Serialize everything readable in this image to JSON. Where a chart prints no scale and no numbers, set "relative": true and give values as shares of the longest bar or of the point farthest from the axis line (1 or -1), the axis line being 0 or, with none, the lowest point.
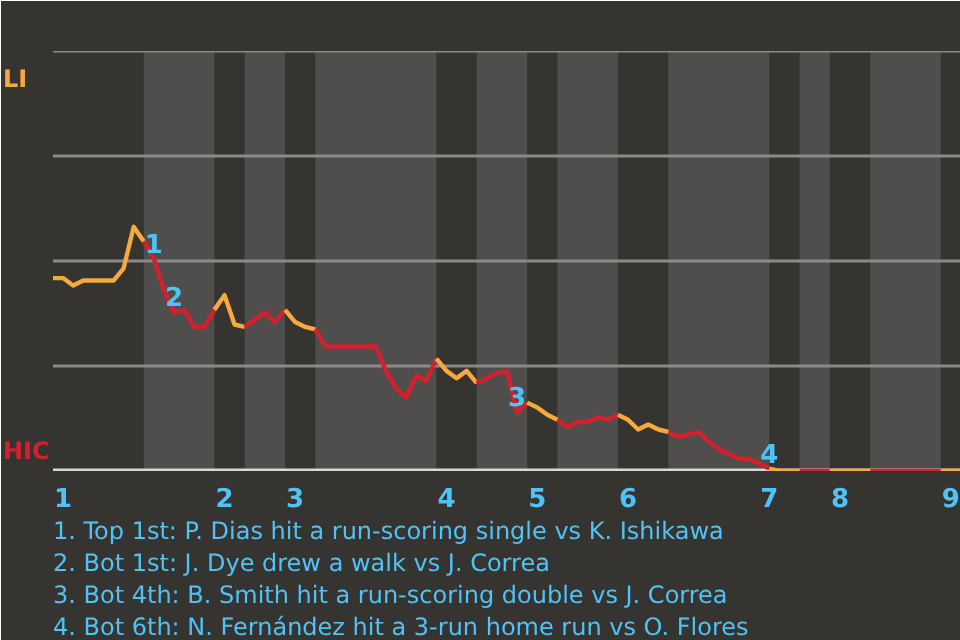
{
  "chart_data": {
    "type": "line",
    "relative": true,
    "categories": [
      null,
      "1",
      null,
      null,
      null,
      null,
      null,
      null,
      null,
      null,
      null,
      null,
      null,
      null,
      null,
      null,
      null,
      "2",
      null,
      null,
      null,
      null,
      null,
      null,
      "3",
      null,
      null,
      null,
      null,
      null,
      null,
      null,
      null,
      null,
      null,
      null,
      null,
      null,
      null,
      "4",
      null,
      null,
      null,
      null,
      null,
      null,
      null,
      null,
      "5",
      null,
      null,
      null,
      null,
      null,
      null,
      null,
      null,
      "6",
      null,
      null,
      null,
      null,
      null,
      null,
      null,
      null,
      null,
      null,
      null,
      null,
      null,
      "7",
      null,
      null,
      null,
      null,
      null,
      null,
      "8",
      null,
      null,
      null,
      null,
      null,
      null,
      null,
      null,
      null,
      null,
      "9",
      null
    ],
    "series": [
      {
        "name": "LI",
        "color": "#f7a93b",
        "values": [
          0.79,
          0.79,
          0.76,
          0.78,
          0.78,
          0.78,
          0.78,
          0.83,
          1,
          0.94,
          null,
          null,
          null,
          null,
          null,
          null,
          null,
          null,
          null,
          null,
          null,
          null,
          null,
          null,
          null,
          null,
          null,
          null,
          null,
          null,
          null,
          null,
          null,
          null,
          null,
          null,
          null,
          null,
          null,
          null,
          null,
          null,
          null,
          null,
          null,
          null,
          null,
          null,
          null,
          null,
          null,
          null,
          null,
          null,
          null,
          null,
          null,
          null,
          null,
          null,
          null,
          null,
          null,
          null,
          null,
          null,
          null,
          null,
          null,
          null,
          null,
          null,
          null,
          null,
          null,
          null,
          null,
          null,
          null,
          null,
          null,
          null,
          null,
          null,
          null,
          null,
          null,
          null,
          null,
          null,
          null
        ]
      },
      {
        "name": "HIC",
        "color": "#d4202c",
        "values": [
          null,
          null,
          null,
          null,
          null,
          null,
          null,
          null,
          null,
          0.94,
          0.87,
          0.74,
          0.65,
          0.66,
          0.59,
          0.59,
          0.66,
          null,
          null,
          null,
          null,
          null,
          null,
          null,
          null,
          null,
          null,
          null,
          null,
          null,
          null,
          null,
          null,
          null,
          null,
          null,
          null,
          null,
          null,
          null,
          null,
          null,
          null,
          null,
          null,
          null,
          null,
          null,
          null,
          null,
          null,
          null,
          null,
          null,
          null,
          null,
          null,
          null,
          null,
          null,
          null,
          null,
          null,
          null,
          null,
          null,
          null,
          null,
          null,
          null,
          null,
          null,
          null,
          null,
          null,
          null,
          null,
          null,
          null,
          null,
          null,
          null,
          null,
          null,
          null,
          null,
          null,
          null,
          null,
          null,
          null
        ]
      },
      {
        "color": "#f7a93b",
        "values": [
          null,
          null,
          null,
          null,
          null,
          null,
          null,
          null,
          null,
          null,
          null,
          null,
          null,
          null,
          null,
          null,
          0.66,
          0.72,
          0.6,
          0.59,
          null,
          null,
          null,
          null,
          null,
          null,
          null,
          null,
          null,
          null,
          null,
          null,
          null,
          null,
          null,
          null,
          null,
          null,
          null,
          null,
          null,
          null,
          null,
          null,
          null,
          null,
          null,
          null,
          null,
          null,
          null,
          null,
          null,
          null,
          null,
          null,
          null,
          null,
          null,
          null,
          null,
          null,
          null,
          null,
          null,
          null,
          null,
          null,
          null,
          null,
          null,
          null,
          null,
          null,
          null,
          null,
          null,
          null,
          null,
          null,
          null,
          null,
          null,
          null,
          null,
          null,
          null,
          null,
          null,
          null,
          null
        ]
      },
      {
        "color": "#d4202c",
        "values": [
          null,
          null,
          null,
          null,
          null,
          null,
          null,
          null,
          null,
          null,
          null,
          null,
          null,
          null,
          null,
          null,
          null,
          null,
          null,
          0.59,
          0.62,
          0.65,
          0.61,
          0.66,
          null,
          null,
          null,
          null,
          null,
          null,
          null,
          null,
          null,
          null,
          null,
          null,
          null,
          null,
          null,
          null,
          null,
          null,
          null,
          null,
          null,
          null,
          null,
          null,
          null,
          null,
          null,
          null,
          null,
          null,
          null,
          null,
          null,
          null,
          null,
          null,
          null,
          null,
          null,
          null,
          null,
          null,
          null,
          null,
          null,
          null,
          null,
          null,
          null,
          null,
          null,
          null,
          null,
          null,
          null,
          null,
          null,
          null,
          null,
          null,
          null,
          null,
          null,
          null,
          null,
          null,
          null
        ]
      },
      {
        "color": "#f7a93b",
        "values": [
          null,
          null,
          null,
          null,
          null,
          null,
          null,
          null,
          null,
          null,
          null,
          null,
          null,
          null,
          null,
          null,
          null,
          null,
          null,
          null,
          null,
          null,
          null,
          0.66,
          0.61,
          0.59,
          0.58,
          null,
          null,
          null,
          null,
          null,
          null,
          null,
          null,
          null,
          null,
          null,
          null,
          null,
          null,
          null,
          null,
          null,
          null,
          null,
          null,
          null,
          null,
          null,
          null,
          null,
          null,
          null,
          null,
          null,
          null,
          null,
          null,
          null,
          null,
          null,
          null,
          null,
          null,
          null,
          null,
          null,
          null,
          null,
          null,
          null,
          null,
          null,
          null,
          null,
          null,
          null,
          null,
          null,
          null,
          null,
          null,
          null,
          null,
          null,
          null,
          null,
          null,
          null,
          null
        ]
      },
      {
        "color": "#d4202c",
        "values": [
          null,
          null,
          null,
          null,
          null,
          null,
          null,
          null,
          null,
          null,
          null,
          null,
          null,
          null,
          null,
          null,
          null,
          null,
          null,
          null,
          null,
          null,
          null,
          null,
          null,
          null,
          0.58,
          0.51,
          0.51,
          0.51,
          0.51,
          0.51,
          0.51,
          0.41,
          0.34,
          0.3,
          0.39,
          0.37,
          0.46,
          null,
          null,
          null,
          null,
          null,
          null,
          null,
          null,
          null,
          null,
          null,
          null,
          null,
          null,
          null,
          null,
          null,
          null,
          null,
          null,
          null,
          null,
          null,
          null,
          null,
          null,
          null,
          null,
          null,
          null,
          null,
          null,
          null,
          null,
          null,
          null,
          null,
          null,
          null,
          null,
          null,
          null,
          null,
          null,
          null,
          null,
          null,
          null,
          null,
          null,
          null,
          null
        ]
      },
      {
        "color": "#f7a93b",
        "values": [
          null,
          null,
          null,
          null,
          null,
          null,
          null,
          null,
          null,
          null,
          null,
          null,
          null,
          null,
          null,
          null,
          null,
          null,
          null,
          null,
          null,
          null,
          null,
          null,
          null,
          null,
          null,
          null,
          null,
          null,
          null,
          null,
          null,
          null,
          null,
          null,
          null,
          null,
          0.46,
          0.41,
          0.38,
          0.41,
          0.36,
          null,
          null,
          null,
          null,
          null,
          null,
          null,
          null,
          null,
          null,
          null,
          null,
          null,
          null,
          null,
          null,
          null,
          null,
          null,
          null,
          null,
          null,
          null,
          null,
          null,
          null,
          null,
          null,
          null,
          null,
          null,
          null,
          null,
          null,
          null,
          null,
          null,
          null,
          null,
          null,
          null,
          null,
          null,
          null,
          null,
          null,
          null,
          null
        ]
      },
      {
        "color": "#d4202c",
        "values": [
          null,
          null,
          null,
          null,
          null,
          null,
          null,
          null,
          null,
          null,
          null,
          null,
          null,
          null,
          null,
          null,
          null,
          null,
          null,
          null,
          null,
          null,
          null,
          null,
          null,
          null,
          null,
          null,
          null,
          null,
          null,
          null,
          null,
          null,
          null,
          null,
          null,
          null,
          null,
          null,
          null,
          null,
          0.36,
          0.38,
          0.4,
          0.41,
          0.24,
          0.28,
          null,
          null,
          null,
          null,
          null,
          null,
          null,
          null,
          null,
          null,
          null,
          null,
          null,
          null,
          null,
          null,
          null,
          null,
          null,
          null,
          null,
          null,
          null,
          null,
          null,
          null,
          null,
          null,
          null,
          null,
          null,
          null,
          null,
          null,
          null,
          null,
          null,
          null,
          null,
          null,
          null,
          null,
          null
        ]
      },
      {
        "color": "#f7a93b",
        "values": [
          null,
          null,
          null,
          null,
          null,
          null,
          null,
          null,
          null,
          null,
          null,
          null,
          null,
          null,
          null,
          null,
          null,
          null,
          null,
          null,
          null,
          null,
          null,
          null,
          null,
          null,
          null,
          null,
          null,
          null,
          null,
          null,
          null,
          null,
          null,
          null,
          null,
          null,
          null,
          null,
          null,
          null,
          null,
          null,
          null,
          null,
          null,
          0.28,
          0.26,
          0.23,
          0.21,
          null,
          null,
          null,
          null,
          null,
          null,
          null,
          null,
          null,
          null,
          null,
          null,
          null,
          null,
          null,
          null,
          null,
          null,
          null,
          null,
          null,
          null,
          null,
          null,
          null,
          null,
          null,
          null,
          null,
          null,
          null,
          null,
          null,
          null,
          null,
          null,
          null,
          null,
          null,
          null
        ]
      },
      {
        "color": "#d4202c",
        "values": [
          null,
          null,
          null,
          null,
          null,
          null,
          null,
          null,
          null,
          null,
          null,
          null,
          null,
          null,
          null,
          null,
          null,
          null,
          null,
          null,
          null,
          null,
          null,
          null,
          null,
          null,
          null,
          null,
          null,
          null,
          null,
          null,
          null,
          null,
          null,
          null,
          null,
          null,
          null,
          null,
          null,
          null,
          null,
          null,
          null,
          null,
          null,
          null,
          null,
          null,
          0.21,
          0.18,
          0.2,
          0.2,
          0.22,
          0.21,
          0.23,
          null,
          null,
          null,
          null,
          null,
          null,
          null,
          null,
          null,
          null,
          null,
          null,
          null,
          null,
          null,
          null,
          null,
          null,
          null,
          null,
          null,
          null,
          null,
          null,
          null,
          null,
          null,
          null,
          null,
          null,
          null,
          null,
          null,
          null
        ]
      },
      {
        "color": "#f7a93b",
        "values": [
          null,
          null,
          null,
          null,
          null,
          null,
          null,
          null,
          null,
          null,
          null,
          null,
          null,
          null,
          null,
          null,
          null,
          null,
          null,
          null,
          null,
          null,
          null,
          null,
          null,
          null,
          null,
          null,
          null,
          null,
          null,
          null,
          null,
          null,
          null,
          null,
          null,
          null,
          null,
          null,
          null,
          null,
          null,
          null,
          null,
          null,
          null,
          null,
          null,
          null,
          null,
          null,
          null,
          null,
          null,
          null,
          0.23,
          0.21,
          0.17,
          0.19,
          0.17,
          0.16,
          null,
          null,
          null,
          null,
          null,
          null,
          null,
          null,
          null,
          null,
          null,
          null,
          null,
          null,
          null,
          null,
          null,
          null,
          null,
          null,
          null,
          null,
          null,
          null,
          null,
          null,
          null,
          null,
          null
        ]
      },
      {
        "color": "#d4202c",
        "values": [
          null,
          null,
          null,
          null,
          null,
          null,
          null,
          null,
          null,
          null,
          null,
          null,
          null,
          null,
          null,
          null,
          null,
          null,
          null,
          null,
          null,
          null,
          null,
          null,
          null,
          null,
          null,
          null,
          null,
          null,
          null,
          null,
          null,
          null,
          null,
          null,
          null,
          null,
          null,
          null,
          null,
          null,
          null,
          null,
          null,
          null,
          null,
          null,
          null,
          null,
          null,
          null,
          null,
          null,
          null,
          null,
          null,
          null,
          null,
          null,
          null,
          0.16,
          0.14,
          0.15,
          0.16,
          0.12,
          0.09,
          0.07,
          0.05,
          0.05,
          0.03,
          0.01,
          null,
          null,
          null,
          null,
          null,
          null,
          null,
          null,
          null,
          null,
          null,
          null,
          null,
          null,
          null,
          null,
          null,
          null,
          null
        ]
      },
      {
        "color": "#f7a93b",
        "values": [
          null,
          null,
          null,
          null,
          null,
          null,
          null,
          null,
          null,
          null,
          null,
          null,
          null,
          null,
          null,
          null,
          null,
          null,
          null,
          null,
          null,
          null,
          null,
          null,
          null,
          null,
          null,
          null,
          null,
          null,
          null,
          null,
          null,
          null,
          null,
          null,
          null,
          null,
          null,
          null,
          null,
          null,
          null,
          null,
          null,
          null,
          null,
          null,
          null,
          null,
          null,
          null,
          null,
          null,
          null,
          null,
          null,
          null,
          null,
          null,
          null,
          null,
          null,
          null,
          null,
          null,
          null,
          null,
          null,
          null,
          null,
          0.01,
          0,
          0,
          0,
          null,
          null,
          null,
          null,
          null,
          null,
          null,
          null,
          null,
          null,
          null,
          null,
          null,
          null,
          null,
          null
        ]
      },
      {
        "color": "#d4202c",
        "values": [
          null,
          null,
          null,
          null,
          null,
          null,
          null,
          null,
          null,
          null,
          null,
          null,
          null,
          null,
          null,
          null,
          null,
          null,
          null,
          null,
          null,
          null,
          null,
          null,
          null,
          null,
          null,
          null,
          null,
          null,
          null,
          null,
          null,
          null,
          null,
          null,
          null,
          null,
          null,
          null,
          null,
          null,
          null,
          null,
          null,
          null,
          null,
          null,
          null,
          null,
          null,
          null,
          null,
          null,
          null,
          null,
          null,
          null,
          null,
          null,
          null,
          null,
          null,
          null,
          null,
          null,
          null,
          null,
          null,
          null,
          null,
          null,
          null,
          null,
          0,
          0,
          0,
          0,
          null,
          null,
          null,
          null,
          null,
          null,
          null,
          null,
          null,
          null,
          null,
          null,
          null
        ]
      },
      {
        "color": "#f7a93b",
        "values": [
          null,
          null,
          null,
          null,
          null,
          null,
          null,
          null,
          null,
          null,
          null,
          null,
          null,
          null,
          null,
          null,
          null,
          null,
          null,
          null,
          null,
          null,
          null,
          null,
          null,
          null,
          null,
          null,
          null,
          null,
          null,
          null,
          null,
          null,
          null,
          null,
          null,
          null,
          null,
          null,
          null,
          null,
          null,
          null,
          null,
          null,
          null,
          null,
          null,
          null,
          null,
          null,
          null,
          null,
          null,
          null,
          null,
          null,
          null,
          null,
          null,
          null,
          null,
          null,
          null,
          null,
          null,
          null,
          null,
          null,
          null,
          null,
          null,
          null,
          null,
          null,
          null,
          0,
          0,
          0,
          0,
          0,
          null,
          null,
          null,
          null,
          null,
          null,
          null,
          null,
          null
        ]
      },
      {
        "color": "#d4202c",
        "values": [
          null,
          null,
          null,
          null,
          null,
          null,
          null,
          null,
          null,
          null,
          null,
          null,
          null,
          null,
          null,
          null,
          null,
          null,
          null,
          null,
          null,
          null,
          null,
          null,
          null,
          null,
          null,
          null,
          null,
          null,
          null,
          null,
          null,
          null,
          null,
          null,
          null,
          null,
          null,
          null,
          null,
          null,
          null,
          null,
          null,
          null,
          null,
          null,
          null,
          null,
          null,
          null,
          null,
          null,
          null,
          null,
          null,
          null,
          null,
          null,
          null,
          null,
          null,
          null,
          null,
          null,
          null,
          null,
          null,
          null,
          null,
          null,
          null,
          null,
          null,
          null,
          null,
          null,
          null,
          null,
          null,
          0,
          0,
          0,
          0,
          0,
          0,
          0,
          0,
          null,
          null
        ]
      },
      {
        "color": "#f7a93b",
        "values": [
          null,
          null,
          null,
          null,
          null,
          null,
          null,
          null,
          null,
          null,
          null,
          null,
          null,
          null,
          null,
          null,
          null,
          null,
          null,
          null,
          null,
          null,
          null,
          null,
          null,
          null,
          null,
          null,
          null,
          null,
          null,
          null,
          null,
          null,
          null,
          null,
          null,
          null,
          null,
          null,
          null,
          null,
          null,
          null,
          null,
          null,
          null,
          null,
          null,
          null,
          null,
          null,
          null,
          null,
          null,
          null,
          null,
          null,
          null,
          null,
          null,
          null,
          null,
          null,
          null,
          null,
          null,
          null,
          null,
          null,
          null,
          null,
          null,
          null,
          null,
          null,
          null,
          null,
          null,
          null,
          null,
          null,
          null,
          null,
          null,
          null,
          null,
          null,
          0,
          0,
          0
        ]
      }
    ],
    "tick_labels": "x",
    "ref_lines": [
      {
        "axis": "y",
        "value": 0.43,
        "color": "#8c8a87"
      },
      {
        "axis": "y",
        "value": 0.86,
        "color": "#8c8a87"
      },
      {
        "axis": "y",
        "value": 1.29,
        "color": "#8c8a87"
      },
      {
        "axis": "y",
        "value": 1.72,
        "color": "#8c8a87"
      }
    ],
    "line_style": "solid",
    "annotations": [
      {
        "text": "1",
        "y": 0.87
      },
      {
        "text": "2",
        "y": 0.65
      },
      {
        "text": "3",
        "y": 0.24
      },
      {
        "text": "4",
        "y": 0.01
      },
      "1. Top 1st: P. Dias hit a run-scoring single vs K. Ishikawa",
      "2. Bot 1st: J. Dye drew a walk vs J. Correa",
      "3. Bot 4th: B. Smith hit a run-scoring double vs J. Correa",
      "4. Bot 6th: N. Fernández hit a 3-run home run vs O. Flores"
    ]
  }
}
